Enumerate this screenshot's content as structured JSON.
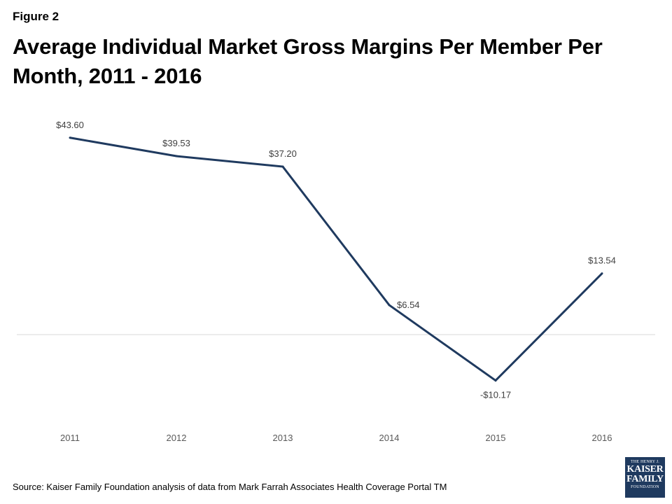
{
  "figure_label": "Figure 2",
  "source": "Source: Kaiser Family Foundation  analysis of data from Mark Farrah Associates Health Coverage Portal TM",
  "logo": {
    "line1": "THE HENRY J.",
    "line2": "KAISER",
    "line3": "FAMILY",
    "line4": "FOUNDATION"
  },
  "colors": {
    "line": "#1f3a5f",
    "zero_line": "#d9d9d9",
    "label_text": "#404040",
    "tick_text": "#595959"
  },
  "chart_data": {
    "type": "line",
    "title": "Average Individual Market Gross Margins Per Member Per Month, 2011 - 2016",
    "xlabel": "",
    "ylabel": "",
    "categories": [
      "2011",
      "2012",
      "2013",
      "2014",
      "2015",
      "2016"
    ],
    "series": [
      {
        "values": [
          43.6,
          39.53,
          37.2,
          6.54,
          -10.17,
          13.54
        ],
        "labels": [
          "$43.60",
          "$39.53",
          "$37.20",
          "$6.54",
          "-$10.17",
          "$13.54"
        ]
      }
    ],
    "grid": false,
    "zero_line": true,
    "legend": "none"
  }
}
